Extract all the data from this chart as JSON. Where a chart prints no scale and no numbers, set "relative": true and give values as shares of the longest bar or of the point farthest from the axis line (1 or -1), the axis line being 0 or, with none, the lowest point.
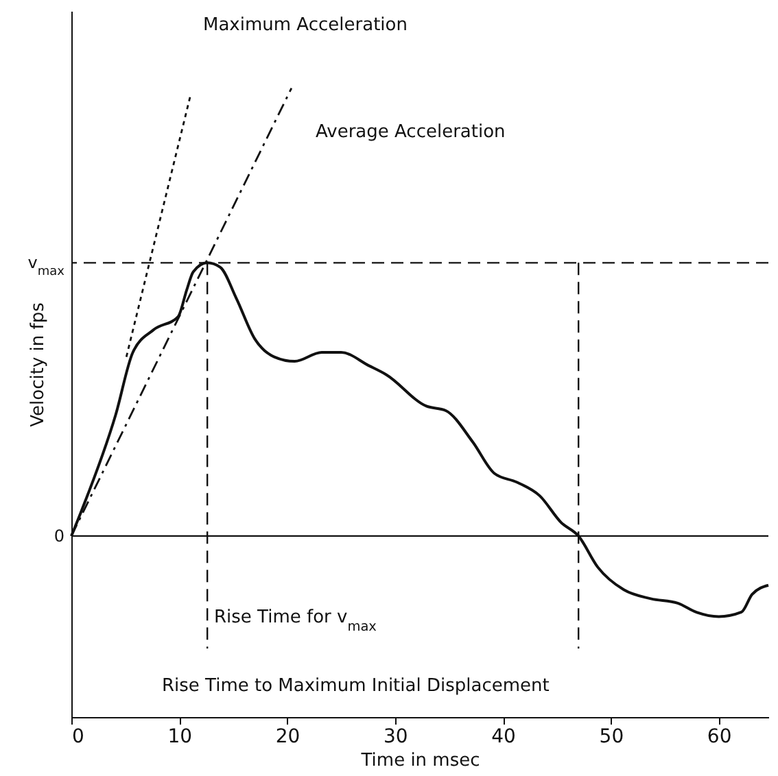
{
  "chart_data": {
    "type": "line",
    "xlabel": "Time in msec",
    "ylabel": "Velocity in fps",
    "xlim": [
      0,
      64.6
    ],
    "xticks": [
      0,
      10,
      20,
      30,
      40,
      50,
      60
    ],
    "relative": true,
    "grid": false,
    "series": [
      {
        "color": "#111111",
        "line_style": "solid",
        "x": [
          0,
          1,
          4.1,
          5.7,
          7.6,
          9.9,
          10.7,
          11.3,
          12.6,
          13.8,
          15.3,
          17,
          18.8,
          20.7,
          23.2,
          25,
          27.6,
          29.2,
          32.9,
          34.7,
          37.2,
          39.2,
          41.3,
          43.4,
          45.4,
          47,
          48.8,
          51.2,
          53.7,
          56.2,
          57.9,
          60,
          62.1,
          63.1,
          64.6
        ],
        "values": [
          0,
          0.06,
          0.27,
          0.41,
          0.46,
          0.49,
          0.55,
          0.59,
          0.61,
          0.6,
          0.53,
          0.44,
          0.4,
          0.39,
          0.41,
          0.41,
          0.38,
          0.36,
          0.29,
          0.28,
          0.21,
          0.14,
          0.12,
          0.09,
          0.03,
          0,
          -0.07,
          -0.12,
          -0.14,
          -0.15,
          -0.17,
          -0.18,
          -0.17,
          -0.13,
          -0.11
        ]
      },
      {
        "type": "line",
        "color": "#111111",
        "line_style": "dotted",
        "x": [
          5.1,
          11
        ],
        "values": [
          0.4,
          0.98
        ]
      },
      {
        "type": "line",
        "color": "#111111",
        "line_style": "dashed",
        "x": [
          0,
          20.4
        ],
        "values": [
          0,
          1
        ]
      }
    ],
    "ref_lines": [
      {
        "axis": "y",
        "value": 0.61,
        "label": "v$_{max}$",
        "line_style": "dashed"
      },
      {
        "axis": "y",
        "value": 0,
        "label": "0",
        "line_style": "solid"
      },
      {
        "axis": "x",
        "value": 12.6,
        "line_style": "dashed"
      },
      {
        "axis": "x",
        "value": 47,
        "line_style": "dashed"
      }
    ],
    "annotations": [
      "Maximum Acceleration",
      "Average Acceleration",
      "Rise Time for v$_{max}$",
      "Rise Time to Maximum Initial Displacement"
    ]
  }
}
